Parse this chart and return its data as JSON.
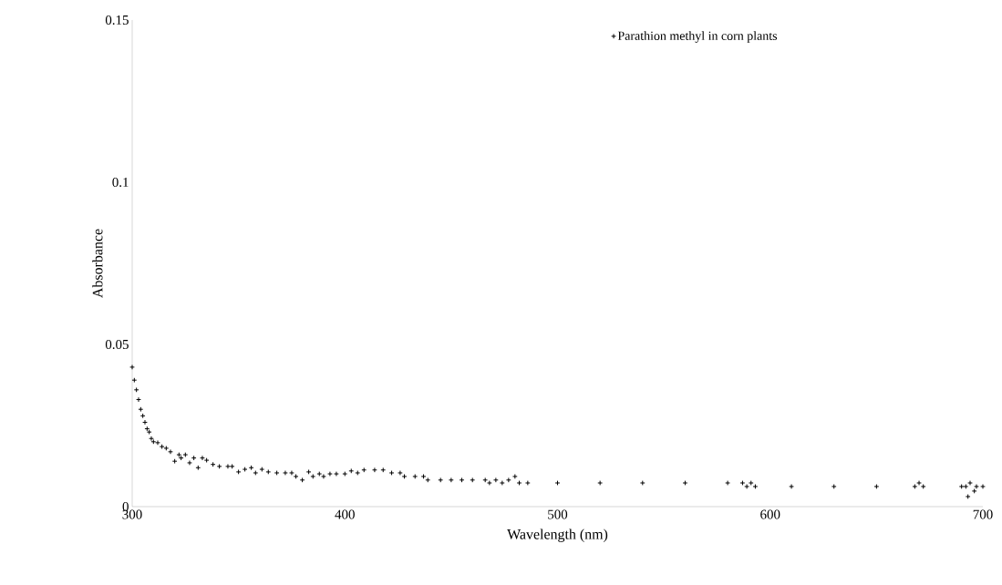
{
  "chart_data": {
    "type": "scatter",
    "xlabel": "Wavelength (nm)",
    "ylabel": "Absorbance",
    "xlim": [
      300,
      700
    ],
    "ylim": [
      0,
      0.15
    ],
    "xticks": [
      300,
      400,
      500,
      600,
      700
    ],
    "yticks": [
      0,
      0.05,
      0.1,
      0.15
    ],
    "grid": false,
    "legend": "top right",
    "marker": "cross",
    "series": [
      {
        "name": "Parathion methyl in corn plants",
        "color": "#000000",
        "x": [
          300,
          301,
          302,
          303,
          304,
          305,
          306,
          307,
          308,
          309,
          310,
          312,
          314,
          316,
          318,
          320,
          322,
          323,
          325,
          327,
          329,
          331,
          333,
          335,
          338,
          341,
          345,
          347,
          350,
          353,
          356,
          358,
          361,
          364,
          368,
          372,
          375,
          377,
          380,
          383,
          385,
          388,
          390,
          393,
          396,
          400,
          403,
          406,
          409,
          414,
          418,
          422,
          426,
          428,
          433,
          437,
          439,
          445,
          450,
          455,
          460,
          466,
          468,
          471,
          474,
          477,
          480,
          482,
          486,
          500,
          520,
          540,
          560,
          580,
          587,
          589,
          591,
          593,
          610,
          630,
          650,
          668,
          670,
          672,
          690,
          692,
          693,
          694,
          696,
          697,
          700
        ],
        "values": [
          0.043,
          0.039,
          0.036,
          0.033,
          0.03,
          0.028,
          0.026,
          0.024,
          0.023,
          0.021,
          0.02,
          0.0197,
          0.0185,
          0.018,
          0.0169,
          0.014,
          0.016,
          0.015,
          0.016,
          0.0135,
          0.015,
          0.012,
          0.015,
          0.0143,
          0.013,
          0.0124,
          0.0124,
          0.0124,
          0.0107,
          0.0115,
          0.012,
          0.0104,
          0.0115,
          0.0107,
          0.0104,
          0.0104,
          0.0104,
          0.0093,
          0.0082,
          0.0107,
          0.0093,
          0.0101,
          0.0093,
          0.0101,
          0.0101,
          0.0101,
          0.011,
          0.0104,
          0.0113,
          0.0113,
          0.0113,
          0.0104,
          0.0104,
          0.0093,
          0.0093,
          0.0093,
          0.0082,
          0.0082,
          0.0082,
          0.0082,
          0.0082,
          0.0082,
          0.0073,
          0.0082,
          0.0073,
          0.0082,
          0.0093,
          0.0073,
          0.0073,
          0.0073,
          0.0073,
          0.0073,
          0.0073,
          0.0073,
          0.0073,
          0.0062,
          0.0073,
          0.0062,
          0.0062,
          0.0062,
          0.0062,
          0.0062,
          0.0073,
          0.0062,
          0.0062,
          0.0062,
          0.0031,
          0.0073,
          0.0048,
          0.0062,
          0.0062
        ]
      }
    ]
  }
}
